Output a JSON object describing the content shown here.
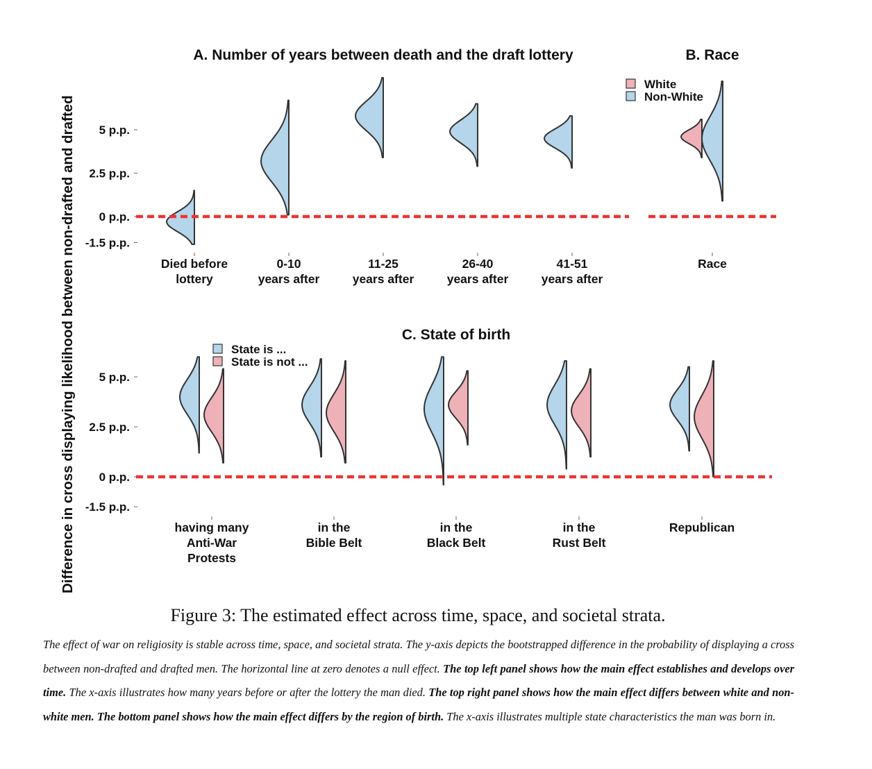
{
  "colors": {
    "blue_fill": "#b4d5ea",
    "pink_fill": "#eeb1b8",
    "outline": "#333333",
    "null_line": "#ee3333"
  },
  "y_axis_label": "Difference in cross displaying likelihood between non-drafted and drafted",
  "panels": {
    "a": {
      "title": "A. Number of years between death and the draft lottery"
    },
    "b": {
      "title": "B. Race",
      "legend": [
        "White",
        "Non-White"
      ]
    },
    "c": {
      "title": "C. State of birth",
      "legend": [
        "State is ...",
        "State is not ..."
      ]
    }
  },
  "chart_data": [
    {
      "id": "A",
      "type": "violin",
      "title": "A. Number of years between death and the draft lottery",
      "ylabel": "Difference in cross displaying likelihood between non-drafted and drafted",
      "y_ticks": [
        "5 p.p.",
        "2.5 p.p.",
        "0 p.p.",
        "-1.5 p.p."
      ],
      "y_tick_values": [
        5,
        2.5,
        0,
        -1.5
      ],
      "ylim": [
        -2,
        8
      ],
      "null_line": 0,
      "categories": [
        [
          "Died before",
          "lottery"
        ],
        [
          "0-10",
          "years after"
        ],
        [
          "11-25",
          "years after"
        ],
        [
          "26-40",
          "years after"
        ],
        [
          "41-51",
          "years after"
        ]
      ],
      "series": [
        {
          "fill": "blue",
          "side": "left",
          "values": [
            {
              "min": -1.6,
              "max": 1.5,
              "mode": -0.3
            },
            {
              "min": 0.1,
              "max": 6.7,
              "mode": 3.2
            },
            {
              "min": 3.4,
              "max": 8.0,
              "mode": 5.8
            },
            {
              "min": 2.9,
              "max": 6.5,
              "mode": 4.9
            },
            {
              "min": 2.8,
              "max": 5.8,
              "mode": 4.5
            }
          ]
        }
      ]
    },
    {
      "id": "B",
      "type": "violin",
      "title": "B. Race",
      "categories": [
        [
          "Race"
        ]
      ],
      "null_line": 0,
      "legend": "top-left",
      "series": [
        {
          "name": "White",
          "fill": "pink",
          "side": "left",
          "values": [
            {
              "min": 3.4,
              "max": 5.6,
              "mode": 4.6
            }
          ]
        },
        {
          "name": "Non-White",
          "fill": "blue",
          "side": "left",
          "values": [
            {
              "min": 0.9,
              "max": 7.8,
              "mode": 4.5
            }
          ]
        }
      ]
    },
    {
      "id": "C",
      "type": "violin",
      "title": "C. State of birth",
      "y_ticks": [
        "5 p.p.",
        "2.5 p.p.",
        "0 p.p.",
        "-1.5 p.p."
      ],
      "y_tick_values": [
        5,
        2.5,
        0,
        -1.5
      ],
      "ylim": [
        -2,
        7
      ],
      "null_line": 0,
      "legend": "top-left",
      "categories": [
        [
          "having many",
          "Anti-War",
          "Protests"
        ],
        [
          "in the",
          "Bible Belt"
        ],
        [
          "in the",
          "Black Belt"
        ],
        [
          "in the",
          "Rust Belt"
        ],
        [
          "Republican"
        ]
      ],
      "series": [
        {
          "name": "State is ...",
          "fill": "blue",
          "side": "left",
          "values": [
            {
              "min": 1.2,
              "max": 6.0,
              "mode": 4.0
            },
            {
              "min": 1.0,
              "max": 5.9,
              "mode": 3.6
            },
            {
              "min": -0.4,
              "max": 6.0,
              "mode": 3.4
            },
            {
              "min": 0.4,
              "max": 5.8,
              "mode": 3.6
            },
            {
              "min": 1.3,
              "max": 5.5,
              "mode": 3.6
            }
          ]
        },
        {
          "name": "State is not ...",
          "fill": "pink",
          "side": "left",
          "values": [
            {
              "min": 0.7,
              "max": 5.4,
              "mode": 3.1
            },
            {
              "min": 0.7,
              "max": 5.8,
              "mode": 3.2
            },
            {
              "min": 1.6,
              "max": 5.3,
              "mode": 3.6
            },
            {
              "min": 1.0,
              "max": 5.4,
              "mode": 3.3
            },
            {
              "min": 0.0,
              "max": 5.8,
              "mode": 3.0
            }
          ]
        }
      ]
    }
  ],
  "caption": {
    "title": "Figure 3: The estimated effect across time, space, and societal strata.",
    "text_1": "The effect of war on religiosity is stable across time, space, and societal strata. The y-axis depicts the bootstrapped difference in the probability of displaying a cross between non-drafted and drafted men. The horizontal line at zero denotes a null effect. ",
    "bold_1": "The top left panel shows how the main effect establishes and develops over time.",
    "text_2": " The x-axis illustrates how many years before or after the lottery the man died. ",
    "bold_2": "The top right panel shows how the main effect differs between white and non-white men. The bottom panel shows how the main effect differs by the region of birth.",
    "text_3": " The x-axis illustrates multiple state characteristics the man was born in."
  }
}
